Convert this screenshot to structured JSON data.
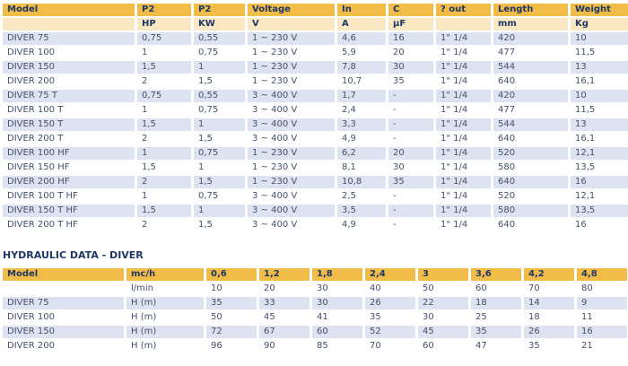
{
  "colors": {
    "header_bg": "#F1BC48",
    "subheader_bg": "#FAE8C4",
    "row_alt_bg": "#DDE3F0",
    "row_bg": "#FFFFFF",
    "header_text": "#1E3764",
    "data_text": "#44506B",
    "page_bg": "#FFFFFF"
  },
  "tech_table": {
    "columns": [
      {
        "label": "Model",
        "sub": ""
      },
      {
        "label": "P2",
        "sub": "HP"
      },
      {
        "label": "P2",
        "sub": "KW"
      },
      {
        "label": "Voltage",
        "sub": "V"
      },
      {
        "label": "In",
        "sub": "A"
      },
      {
        "label": "C",
        "sub": "µF"
      },
      {
        "label": "? out",
        "sub": ""
      },
      {
        "label": "Length",
        "sub": "mm"
      },
      {
        "label": "Weight",
        "sub": "Kg"
      }
    ],
    "rows": [
      [
        "DIVER 75",
        "0,75",
        "0,55",
        "1 ~ 230 V",
        "4,6",
        "16",
        "1\" 1/4",
        "420",
        "10"
      ],
      [
        "DIVER 100",
        "1",
        "0,75",
        "1 ~ 230 V",
        "5,9",
        "20",
        "1\" 1/4",
        "477",
        "11,5"
      ],
      [
        "DIVER 150",
        "1,5",
        "1",
        "1 ~ 230 V",
        "7,8",
        "30",
        "1\" 1/4",
        "544",
        "13"
      ],
      [
        "DIVER 200",
        "2",
        "1,5",
        "1 ~ 230 V",
        "10,7",
        "35",
        "1\" 1/4",
        "640",
        "16,1"
      ],
      [
        "DIVER 75 T",
        "0,75",
        "0,55",
        "3 ~ 400 V",
        "1,7",
        "-",
        "1\" 1/4",
        "420",
        "10"
      ],
      [
        "DIVER 100 T",
        "1",
        "0,75",
        "3 ~ 400 V",
        "2,4",
        "-",
        "1\" 1/4",
        "477",
        "11,5"
      ],
      [
        "DIVER 150 T",
        "1,5",
        "1",
        "3 ~ 400 V",
        "3,3",
        "-",
        "1\" 1/4",
        "544",
        "13"
      ],
      [
        "DIVER 200 T",
        "2",
        "1,5",
        "3 ~ 400 V",
        "4,9",
        "-",
        "1\" 1/4",
        "640",
        "16,1"
      ],
      [
        "DIVER 100 HF",
        "1",
        "0,75",
        "1 ~ 230 V",
        "6,2",
        "20",
        "1\" 1/4",
        "520",
        "12,1"
      ],
      [
        "DIVER 150 HF",
        "1,5",
        "1",
        "1 ~ 230 V",
        "8,1",
        "30",
        "1\" 1/4",
        "580",
        "13,5"
      ],
      [
        "DIVER 200 HF",
        "2",
        "1,5",
        "1 ~ 230 V",
        "10,8",
        "35",
        "1\" 1/4",
        "640",
        "16"
      ],
      [
        "DIVER 100 T HF",
        "1",
        "0,75",
        "3 ~ 400 V",
        "2,5",
        "-",
        "1\" 1/4",
        "520",
        "12,1"
      ],
      [
        "DIVER 150 T HF",
        "1,5",
        "1",
        "3 ~ 400 V",
        "3,5",
        "-",
        "1\" 1/4",
        "580",
        "13,5"
      ],
      [
        "DIVER 200 T HF",
        "2",
        "1,5",
        "3 ~ 400 V",
        "4,9",
        "-",
        "1\" 1/4",
        "640",
        "16"
      ]
    ]
  },
  "hydraulic_table": {
    "title": "HYDRAULIC DATA - DIVER",
    "columns": [
      "Model",
      "mc/h",
      "0,6",
      "1,2",
      "1,8",
      "2,4",
      "3",
      "3,6",
      "4,2",
      "4,8"
    ],
    "rows": [
      [
        "",
        "l/min",
        "10",
        "20",
        "30",
        "40",
        "50",
        "60",
        "70",
        "80"
      ],
      [
        "DIVER 75",
        "H (m)",
        "35",
        "33",
        "30",
        "26",
        "22",
        "18",
        "14",
        "9"
      ],
      [
        "DIVER 100",
        "H (m)",
        "50",
        "45",
        "41",
        "35",
        "30",
        "25",
        "18",
        "11"
      ],
      [
        "DIVER 150",
        "H (m)",
        "72",
        "67",
        "60",
        "52",
        "45",
        "35",
        "26",
        "16"
      ],
      [
        "DIVER 200",
        "H (m)",
        "96",
        "90",
        "85",
        "70",
        "60",
        "47",
        "35",
        "21"
      ]
    ]
  }
}
